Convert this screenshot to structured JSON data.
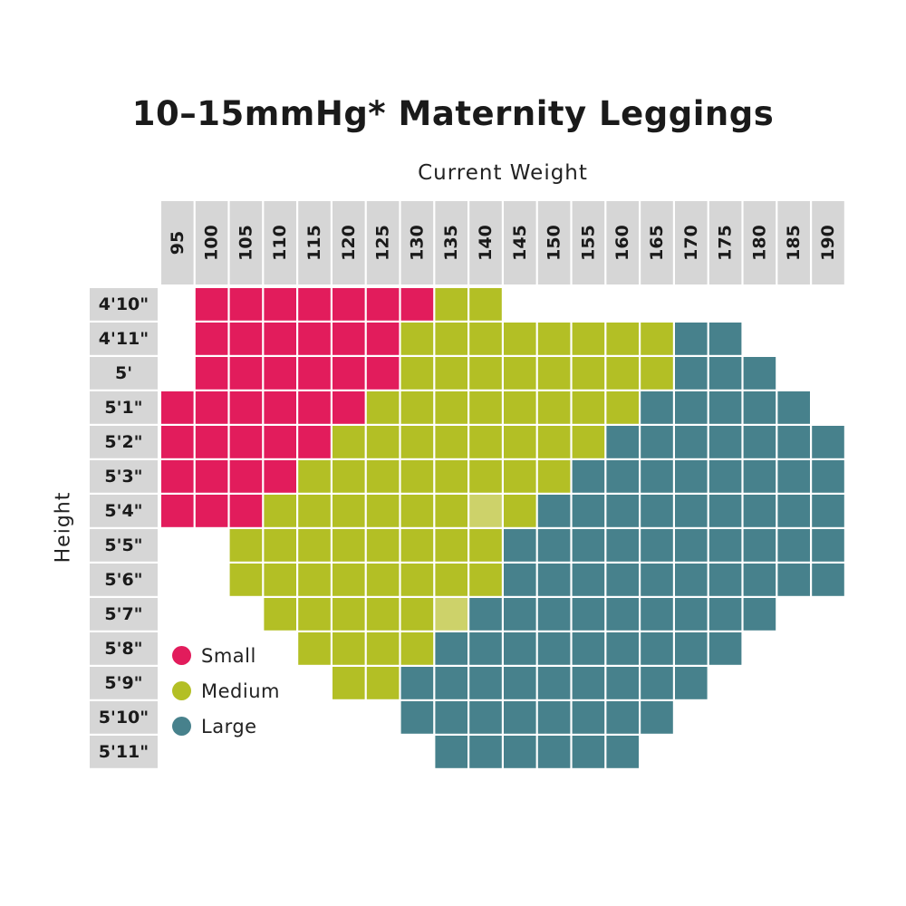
{
  "chart_data": {
    "type": "heatmap",
    "title": "10–15mmHg* Maternity Leggings",
    "xlabel": "Current Weight",
    "ylabel": "Height",
    "x": [
      "95",
      "100",
      "105",
      "110",
      "115",
      "120",
      "125",
      "130",
      "135",
      "140",
      "145",
      "150",
      "155",
      "160",
      "165",
      "170",
      "175",
      "180",
      "185",
      "190"
    ],
    "y": [
      "4'10\"",
      "4'11\"",
      "5'",
      "5'1\"",
      "5'2\"",
      "5'3\"",
      "5'4\"",
      "5'5\"",
      "5'6\"",
      "5'7\"",
      "5'8\"",
      "5'9\"",
      "5'10\"",
      "5'11\""
    ],
    "size_codes": {
      "S": "Small",
      "M": "Medium",
      "L": "Large"
    },
    "values": [
      [
        "",
        "S",
        "S",
        "S",
        "S",
        "S",
        "S",
        "S",
        "M",
        "M",
        "",
        "",
        "",
        "",
        "",
        "",
        "",
        "",
        "",
        ""
      ],
      [
        "",
        "S",
        "S",
        "S",
        "S",
        "S",
        "S",
        "M",
        "M",
        "M",
        "M",
        "M",
        "M",
        "M",
        "M",
        "L",
        "L",
        "",
        "",
        ""
      ],
      [
        "",
        "S",
        "S",
        "S",
        "S",
        "S",
        "S",
        "M",
        "M",
        "M",
        "M",
        "M",
        "M",
        "M",
        "M",
        "L",
        "L",
        "L",
        "",
        ""
      ],
      [
        "S",
        "S",
        "S",
        "S",
        "S",
        "S",
        "M",
        "M",
        "M",
        "M",
        "M",
        "M",
        "M",
        "M",
        "L",
        "L",
        "L",
        "L",
        "L",
        ""
      ],
      [
        "S",
        "S",
        "S",
        "S",
        "S",
        "M",
        "M",
        "M",
        "M",
        "M",
        "M",
        "M",
        "M",
        "L",
        "L",
        "L",
        "L",
        "L",
        "L",
        "L"
      ],
      [
        "S",
        "S",
        "S",
        "S",
        "M",
        "M",
        "M",
        "M",
        "M",
        "M",
        "M",
        "M",
        "L",
        "L",
        "L",
        "L",
        "L",
        "L",
        "L",
        "L"
      ],
      [
        "S",
        "S",
        "S",
        "M",
        "M",
        "M",
        "M",
        "M",
        "M",
        "M",
        "M",
        "L",
        "L",
        "L",
        "L",
        "L",
        "L",
        "L",
        "L",
        "L"
      ],
      [
        "",
        "",
        "M",
        "M",
        "M",
        "M",
        "M",
        "M",
        "M",
        "M",
        "L",
        "L",
        "L",
        "L",
        "L",
        "L",
        "L",
        "L",
        "L",
        "L"
      ],
      [
        "",
        "",
        "M",
        "M",
        "M",
        "M",
        "M",
        "M",
        "M",
        "M",
        "L",
        "L",
        "L",
        "L",
        "L",
        "L",
        "L",
        "L",
        "L",
        "L"
      ],
      [
        "",
        "",
        "",
        "M",
        "M",
        "M",
        "M",
        "M",
        "M",
        "L",
        "L",
        "L",
        "L",
        "L",
        "L",
        "L",
        "L",
        "L",
        "",
        ""
      ],
      [
        "",
        "",
        "",
        "",
        "M",
        "M",
        "M",
        "M",
        "L",
        "L",
        "L",
        "L",
        "L",
        "L",
        "L",
        "L",
        "L",
        "",
        "",
        ""
      ],
      [
        "",
        "",
        "",
        "",
        "",
        "M",
        "M",
        "L",
        "L",
        "L",
        "L",
        "L",
        "L",
        "L",
        "L",
        "L",
        "",
        "",
        "",
        ""
      ],
      [
        "",
        "",
        "",
        "",
        "",
        "",
        "",
        "L",
        "L",
        "L",
        "L",
        "L",
        "L",
        "L",
        "L",
        "",
        "",
        "",
        "",
        ""
      ],
      [
        "",
        "",
        "",
        "",
        "",
        "",
        "",
        "",
        "L",
        "L",
        "L",
        "L",
        "L",
        "L",
        "",
        "",
        "",
        "",
        "",
        ""
      ]
    ],
    "highlighted_cells": [
      {
        "y": "5'4\"",
        "x": "140"
      },
      {
        "y": "5'7\"",
        "x": "135"
      }
    ],
    "legend": [
      {
        "key": "S",
        "label": "Small",
        "color": "#e21c5c"
      },
      {
        "key": "M",
        "label": "Medium",
        "color": "#b3bf25"
      },
      {
        "key": "L",
        "label": "Large",
        "color": "#47818c"
      }
    ],
    "highlight_color": "#cdd26a",
    "header_color": "#d6d6d6",
    "legend_position": "bottom-left"
  }
}
